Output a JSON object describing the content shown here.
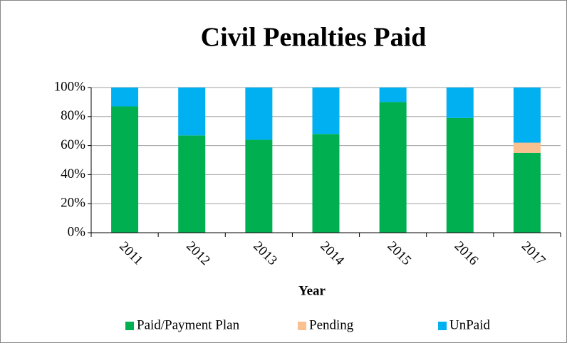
{
  "chart_data": {
    "type": "stacked_bar",
    "title": "Civil Penalties Paid",
    "xlabel": "Year",
    "categories": [
      "2011",
      "2012",
      "2013",
      "2014",
      "2015",
      "2016",
      "2017"
    ],
    "series": [
      {
        "name": "Paid/Payment Plan",
        "color": "#00b050",
        "values": [
          87,
          67,
          64,
          68,
          90,
          79,
          55
        ]
      },
      {
        "name": "Pending",
        "color": "#fac090",
        "values": [
          0,
          0,
          0,
          0,
          0,
          0,
          7
        ]
      },
      {
        "name": "UnPaid",
        "color": "#00b0f0",
        "values": [
          13,
          33,
          36,
          32,
          10,
          21,
          38
        ]
      }
    ],
    "ylim": [
      0,
      100
    ],
    "yticks": [
      {
        "value": 0,
        "label": "0%"
      },
      {
        "value": 20,
        "label": "20%"
      },
      {
        "value": 40,
        "label": "40%"
      },
      {
        "value": 60,
        "label": "60%"
      },
      {
        "value": 80,
        "label": "80%"
      },
      {
        "value": 100,
        "label": "100%"
      }
    ],
    "grid": true,
    "legend": "bottom"
  }
}
